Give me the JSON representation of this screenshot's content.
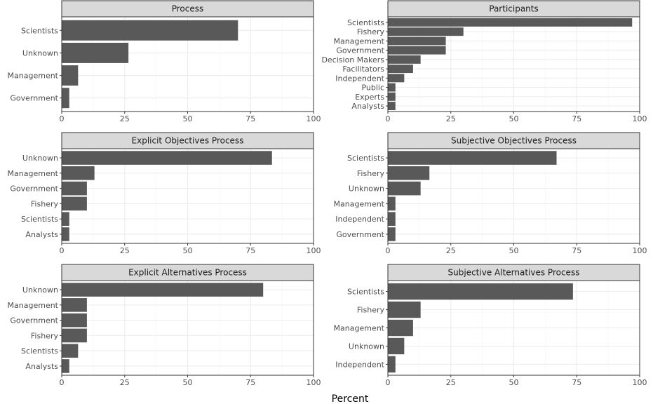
{
  "xlabel": "Percent",
  "colors": {
    "bar": "#595959",
    "strip_fill": "#d9d9d9",
    "strip_border": "#333333",
    "panel_border": "#333333",
    "grid_major": "#ebebeb",
    "grid_minor": "#f5f5f5",
    "tick_text": "#4d4d4d"
  },
  "chart_data": [
    {
      "type": "bar",
      "orientation": "horizontal",
      "title": "Process",
      "categories": [
        "Scientists",
        "Unknown",
        "Management",
        "Government"
      ],
      "values": [
        70,
        26.5,
        6.5,
        3
      ],
      "xlim": [
        0,
        100
      ],
      "xticks": [
        0,
        25,
        50,
        75,
        100
      ],
      "grid": true
    },
    {
      "type": "bar",
      "orientation": "horizontal",
      "title": "Participants",
      "categories": [
        "Scientists",
        "Fishery",
        "Management",
        "Government",
        "Decision Makers",
        "Facilitators",
        "Independent",
        "Public",
        "Experts",
        "Analysts"
      ],
      "values": [
        97,
        30,
        23,
        23,
        13,
        10,
        6.5,
        3,
        3,
        3
      ],
      "xlim": [
        0,
        100
      ],
      "xticks": [
        0,
        25,
        50,
        75,
        100
      ],
      "grid": true
    },
    {
      "type": "bar",
      "orientation": "horizontal",
      "title": "Explicit Objectives Process",
      "categories": [
        "Unknown",
        "Management",
        "Government",
        "Fishery",
        "Scientists",
        "Analysts"
      ],
      "values": [
        83.5,
        13,
        10,
        10,
        3,
        3
      ],
      "xlim": [
        0,
        100
      ],
      "xticks": [
        0,
        25,
        50,
        75,
        100
      ],
      "grid": true
    },
    {
      "type": "bar",
      "orientation": "horizontal",
      "title": "Subjective Objectives Process",
      "categories": [
        "Scientists",
        "Fishery",
        "Unknown",
        "Management",
        "Independent",
        "Government"
      ],
      "values": [
        67,
        16.5,
        13,
        3,
        3,
        3
      ],
      "xlim": [
        0,
        100
      ],
      "xticks": [
        0,
        25,
        50,
        75,
        100
      ],
      "grid": true
    },
    {
      "type": "bar",
      "orientation": "horizontal",
      "title": "Explicit Alternatives Process",
      "categories": [
        "Unknown",
        "Management",
        "Government",
        "Fishery",
        "Scientists",
        "Analysts"
      ],
      "values": [
        80,
        10,
        10,
        10,
        6.5,
        3
      ],
      "xlim": [
        0,
        100
      ],
      "xticks": [
        0,
        25,
        50,
        75,
        100
      ],
      "grid": true
    },
    {
      "type": "bar",
      "orientation": "horizontal",
      "title": "Subjective Alternatives Process",
      "categories": [
        "Scientists",
        "Fishery",
        "Management",
        "Unknown",
        "Independent"
      ],
      "values": [
        73.5,
        13,
        10,
        6.5,
        3
      ],
      "xlim": [
        0,
        100
      ],
      "xticks": [
        0,
        25,
        50,
        75,
        100
      ],
      "grid": true
    }
  ]
}
